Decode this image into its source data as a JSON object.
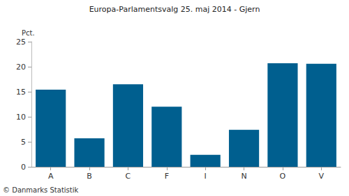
{
  "chart_data": {
    "type": "bar",
    "title": "Europa-Parlamentsvalg 25. maj 2014 - Gjern",
    "y_label": "Pct.",
    "annotation": "© Danmarks Statistik",
    "categories": [
      "A",
      "B",
      "C",
      "F",
      "I",
      "N",
      "O",
      "V"
    ],
    "values": [
      15.4,
      5.7,
      16.5,
      12.0,
      2.4,
      7.4,
      20.7,
      20.6
    ],
    "color": "#005f8f",
    "ylim": [
      0,
      25
    ],
    "yticks": [
      0,
      5,
      10,
      15,
      20,
      25
    ],
    "grid": false
  }
}
